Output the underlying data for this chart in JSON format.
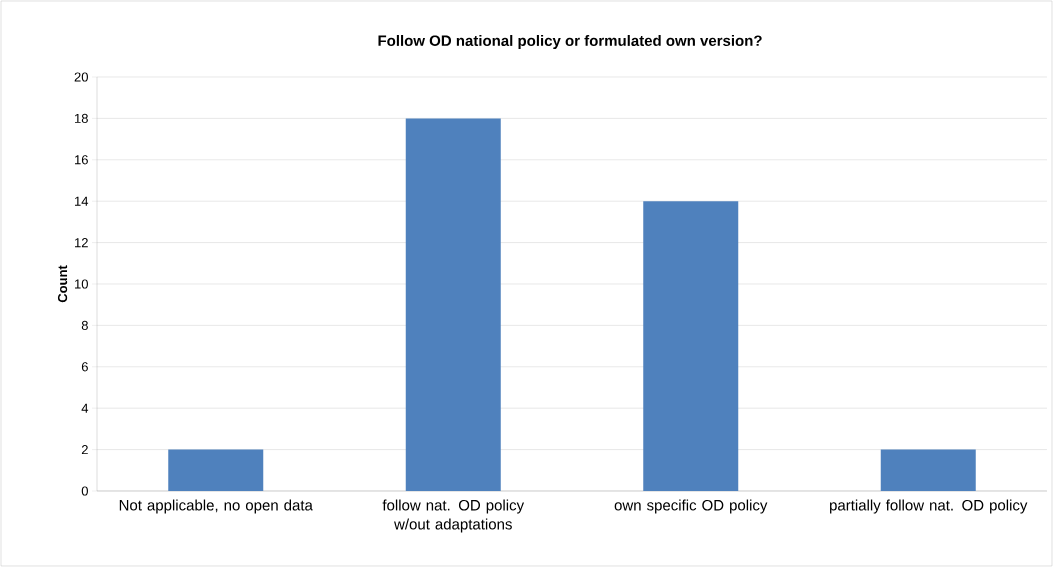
{
  "chart_data": {
    "type": "bar",
    "title": "Follow OD national policy or formulated own version?",
    "ylabel": "Count",
    "categories": [
      "Not applicable, no open data",
      "follow nat. OD policy w/out adaptations",
      "own specific OD policy",
      "partially follow nat. OD policy"
    ],
    "values": [
      2,
      18,
      14,
      2
    ],
    "color": "#4f81bd",
    "ylim": [
      0,
      20
    ],
    "yticks": [
      0,
      2,
      4,
      6,
      8,
      10,
      12,
      14,
      16,
      18,
      20
    ],
    "grid": "y"
  }
}
